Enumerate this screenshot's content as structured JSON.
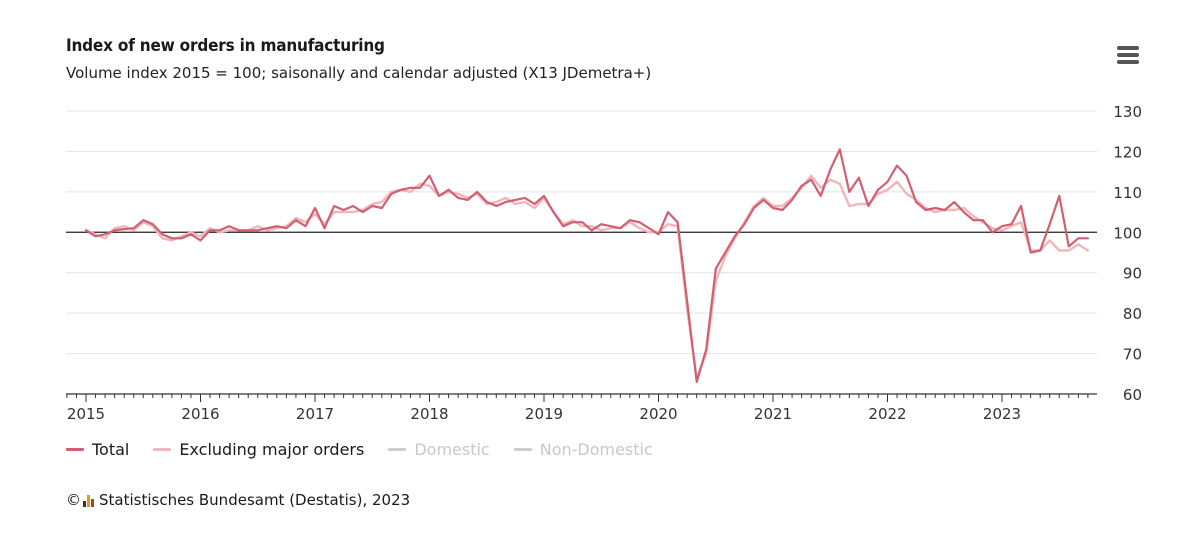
{
  "chart_data": {
    "type": "line",
    "title": "Index of new orders in manufacturing",
    "subtitle": "Volume index 2015 = 100; saisonally and calendar adjusted (X13 JDemetra+)",
    "ylim": [
      60,
      130
    ],
    "y_ticks": [
      60,
      70,
      80,
      90,
      100,
      110,
      120,
      130
    ],
    "reference_line": 100,
    "x_ticks": [
      "2015",
      "2016",
      "2017",
      "2018",
      "2019",
      "2020",
      "2021",
      "2022",
      "2023"
    ],
    "x_start": "2015-01",
    "legend_position": "bottom-left",
    "series": [
      {
        "name": "Total",
        "color": "#d06070",
        "visible": true,
        "values": [
          100.5,
          99.0,
          99.5,
          100.5,
          100.8,
          101.0,
          103.0,
          102.0,
          99.5,
          98.5,
          98.5,
          99.5,
          98.0,
          100.5,
          100.5,
          101.5,
          100.5,
          100.5,
          100.5,
          101.0,
          101.5,
          101.0,
          103.0,
          101.5,
          106.0,
          101.0,
          106.5,
          105.5,
          106.5,
          105.0,
          106.5,
          106.0,
          109.5,
          110.5,
          111.0,
          111.0,
          114.0,
          109.0,
          110.5,
          108.5,
          108.0,
          110.0,
          107.5,
          106.5,
          107.5,
          108.0,
          108.5,
          107.0,
          109.0,
          105.0,
          101.5,
          102.5,
          102.5,
          100.5,
          102.0,
          101.5,
          101.0,
          103.0,
          102.5,
          101.0,
          99.5,
          105.0,
          102.5,
          83.0,
          63.0,
          71.0,
          91.0,
          95.0,
          99.0,
          102.0,
          106.0,
          108.0,
          106.0,
          105.5,
          108.0,
          111.5,
          113.0,
          109.0,
          115.5,
          120.5,
          110.0,
          113.5,
          106.5,
          110.5,
          112.5,
          116.5,
          114.0,
          107.5,
          105.5,
          106.0,
          105.5,
          107.5,
          105.0,
          103.0,
          103.0,
          100.0,
          101.5,
          102.0,
          106.5,
          95.0,
          95.5,
          102.0,
          109.0,
          96.5,
          98.5,
          98.5
        ],
        "hover_hint": ""
      },
      {
        "name": "Excluding major orders",
        "color": "#f0b6bc",
        "visible": true,
        "values": [
          100.5,
          99.5,
          98.5,
          101.0,
          101.5,
          100.5,
          102.5,
          101.5,
          98.5,
          98.0,
          99.0,
          100.0,
          99.0,
          101.0,
          100.0,
          100.5,
          100.5,
          100.5,
          101.5,
          100.5,
          101.0,
          101.5,
          103.5,
          102.5,
          104.5,
          102.0,
          105.0,
          105.0,
          105.0,
          105.5,
          107.0,
          107.5,
          110.0,
          110.5,
          110.0,
          112.0,
          111.5,
          109.0,
          110.0,
          109.5,
          108.5,
          109.5,
          107.0,
          107.5,
          108.5,
          107.0,
          107.5,
          106.0,
          108.5,
          105.0,
          102.0,
          103.0,
          101.5,
          101.5,
          100.5,
          101.0,
          101.0,
          102.5,
          101.0,
          100.0,
          100.0,
          102.0,
          101.5,
          81.0,
          64.0,
          70.0,
          88.0,
          94.0,
          98.5,
          102.5,
          106.5,
          108.5,
          106.5,
          106.5,
          108.5,
          111.0,
          114.0,
          111.0,
          113.0,
          112.0,
          106.5,
          107.0,
          107.0,
          109.5,
          110.5,
          112.5,
          109.5,
          108.0,
          106.0,
          105.0,
          105.5,
          105.5,
          106.0,
          104.0,
          102.5,
          101.0,
          100.5,
          101.5,
          102.5,
          95.5,
          95.5,
          98.0,
          95.5,
          95.5,
          97.0,
          95.5
        ],
        "hover_hint": ""
      },
      {
        "name": "Domestic",
        "color": "#cccccc",
        "visible": false,
        "values": []
      },
      {
        "name": "Non-Domestic",
        "color": "#cccccc",
        "visible": false,
        "values": []
      }
    ]
  },
  "menu": {
    "icon": "hamburger-menu-icon"
  },
  "credit": {
    "copyright_symbol": "©",
    "logo_icon": "destatis-logo-icon",
    "text": "Statistisches Bundesamt (Destatis), 2023"
  }
}
